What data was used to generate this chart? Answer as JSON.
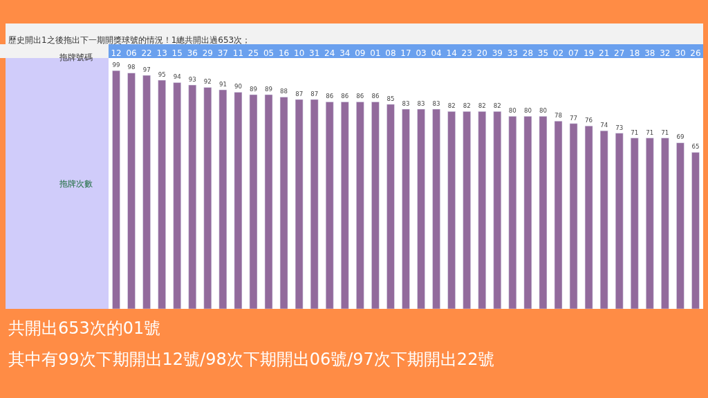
{
  "chart_data": {
    "type": "bar",
    "title": "歷史開出1之後拖出下一期開獎球號的情況！1總共開出過653次；",
    "xlabel": "拖牌號碼",
    "ylabel": "拖牌次數",
    "categories": [
      "12",
      "06",
      "22",
      "13",
      "15",
      "36",
      "29",
      "37",
      "11",
      "25",
      "05",
      "16",
      "10",
      "31",
      "24",
      "34",
      "09",
      "01",
      "08",
      "17",
      "03",
      "04",
      "14",
      "23",
      "20",
      "39",
      "33",
      "28",
      "35",
      "02",
      "07",
      "19",
      "21",
      "27",
      "18",
      "38",
      "32",
      "30",
      "26"
    ],
    "values": [
      99,
      98,
      97,
      95,
      94,
      93,
      92,
      91,
      90,
      89,
      89,
      88,
      87,
      87,
      86,
      86,
      86,
      86,
      85,
      83,
      83,
      83,
      82,
      82,
      82,
      82,
      80,
      80,
      80,
      78,
      77,
      76,
      74,
      73,
      71,
      71,
      71,
      69,
      65
    ],
    "color": "#926a9c",
    "data_labels": true,
    "legend": false,
    "annotations": [
      "共開出653次的01號",
      "其中有99次下期開出12號/98次下期開出06號/97次下期開出22號"
    ]
  }
}
